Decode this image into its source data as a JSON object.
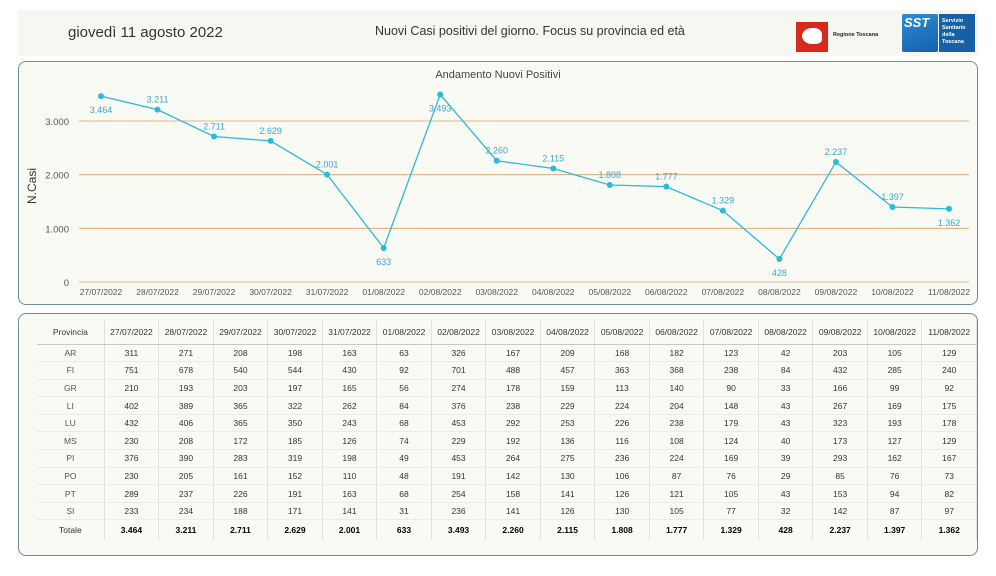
{
  "header": {
    "date": "giovedì 11 agosto 2022",
    "title": "Nuovi Casi positivi del giorno. Focus su provincia ed età",
    "logo_regione": "Regione Toscana",
    "logo_sst_short": "SST",
    "logo_sst_text": "Servizio Sanitario della Toscana"
  },
  "colors": {
    "line": "#2bbad8",
    "label": "#3aa6d0",
    "grid": "#d9a068",
    "border": "#6f8c8f"
  },
  "chart_data": {
    "type": "line",
    "title": "Andamento Nuovi Positivi",
    "xlabel": "",
    "ylabel": "N.Casi",
    "ylim": [
      0,
      3600
    ],
    "yticks": [
      0,
      1000,
      2000,
      3000
    ],
    "ytick_labels": [
      "0",
      "1.000",
      "2.000",
      "3.000"
    ],
    "grid": true,
    "categories": [
      "27/07/2022",
      "28/07/2022",
      "29/07/2022",
      "30/07/2022",
      "31/07/2022",
      "01/08/2022",
      "02/08/2022",
      "03/08/2022",
      "04/08/2022",
      "05/08/2022",
      "06/08/2022",
      "07/08/2022",
      "08/08/2022",
      "09/08/2022",
      "10/08/2022",
      "11/08/2022"
    ],
    "values": [
      3464,
      3211,
      2711,
      2629,
      2001,
      633,
      3493,
      2260,
      2115,
      1808,
      1777,
      1329,
      428,
      2237,
      1397,
      1362
    ],
    "value_labels": [
      "3.464",
      "3.211",
      "2.711",
      "2.629",
      "2.001",
      "633",
      "3.493",
      "2.260",
      "2.115",
      "1.808",
      "1.777",
      "1.329",
      "428",
      "2.237",
      "1.397",
      "1.362"
    ],
    "label_below": [
      true,
      false,
      false,
      false,
      false,
      true,
      true,
      false,
      false,
      false,
      false,
      false,
      true,
      false,
      false,
      true
    ]
  },
  "table": {
    "corner": "Provincia",
    "columns": [
      "27/07/2022",
      "28/07/2022",
      "29/07/2022",
      "30/07/2022",
      "31/07/2022",
      "01/08/2022",
      "02/08/2022",
      "03/08/2022",
      "04/08/2022",
      "05/08/2022",
      "06/08/2022",
      "07/08/2022",
      "08/08/2022",
      "09/08/2022",
      "10/08/2022",
      "11/08/2022"
    ],
    "rows": [
      {
        "prov": "AR",
        "values": [
          "311",
          "271",
          "208",
          "198",
          "163",
          "63",
          "326",
          "167",
          "209",
          "168",
          "182",
          "123",
          "42",
          "203",
          "105",
          "129"
        ]
      },
      {
        "prov": "FI",
        "values": [
          "751",
          "678",
          "540",
          "544",
          "430",
          "92",
          "701",
          "488",
          "457",
          "363",
          "368",
          "238",
          "84",
          "432",
          "285",
          "240"
        ]
      },
      {
        "prov": "GR",
        "values": [
          "210",
          "193",
          "203",
          "197",
          "165",
          "56",
          "274",
          "178",
          "159",
          "113",
          "140",
          "90",
          "33",
          "166",
          "99",
          "92"
        ]
      },
      {
        "prov": "LI",
        "values": [
          "402",
          "389",
          "365",
          "322",
          "262",
          "84",
          "376",
          "238",
          "229",
          "224",
          "204",
          "148",
          "43",
          "267",
          "169",
          "175"
        ]
      },
      {
        "prov": "LU",
        "values": [
          "432",
          "406",
          "365",
          "350",
          "243",
          "68",
          "453",
          "292",
          "253",
          "226",
          "238",
          "179",
          "43",
          "323",
          "193",
          "178"
        ]
      },
      {
        "prov": "MS",
        "values": [
          "230",
          "208",
          "172",
          "185",
          "126",
          "74",
          "229",
          "192",
          "136",
          "116",
          "108",
          "124",
          "40",
          "173",
          "127",
          "129"
        ]
      },
      {
        "prov": "PI",
        "values": [
          "376",
          "390",
          "283",
          "319",
          "198",
          "49",
          "453",
          "264",
          "275",
          "236",
          "224",
          "169",
          "39",
          "293",
          "162",
          "167"
        ]
      },
      {
        "prov": "PO",
        "values": [
          "230",
          "205",
          "161",
          "152",
          "110",
          "48",
          "191",
          "142",
          "130",
          "106",
          "87",
          "76",
          "29",
          "85",
          "76",
          "73"
        ]
      },
      {
        "prov": "PT",
        "values": [
          "289",
          "237",
          "226",
          "191",
          "163",
          "68",
          "254",
          "158",
          "141",
          "126",
          "121",
          "105",
          "43",
          "153",
          "94",
          "82"
        ]
      },
      {
        "prov": "SI",
        "values": [
          "233",
          "234",
          "188",
          "171",
          "141",
          "31",
          "236",
          "141",
          "126",
          "130",
          "105",
          "77",
          "32",
          "142",
          "87",
          "97"
        ]
      }
    ],
    "total": {
      "prov": "Totale",
      "values": [
        "3.464",
        "3.211",
        "2.711",
        "2.629",
        "2.001",
        "633",
        "3.493",
        "2.260",
        "2.115",
        "1.808",
        "1.777",
        "1.329",
        "428",
        "2.237",
        "1.397",
        "1.362"
      ]
    }
  }
}
